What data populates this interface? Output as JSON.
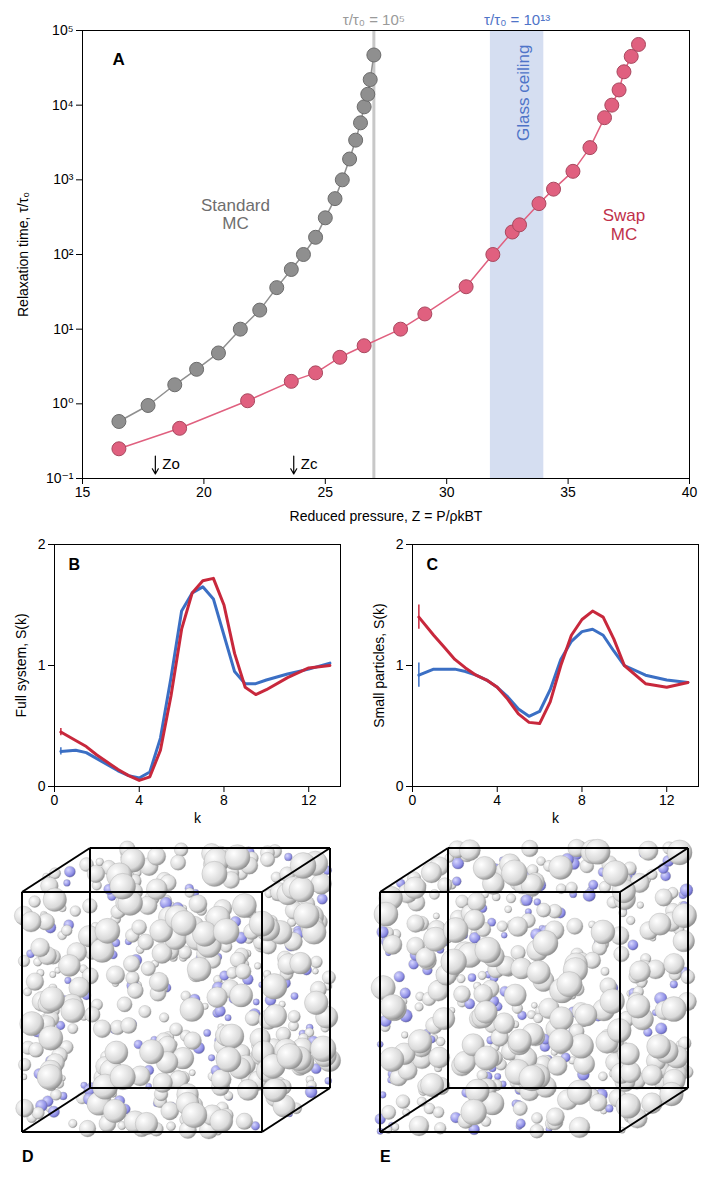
{
  "chart_data": [
    {
      "type": "line",
      "panel": "A",
      "xlabel": "Reduced pressure, Z = P/ρkBT",
      "ylabel": "Relaxation time, τ/τ₀",
      "log": "y",
      "xlim": [
        15,
        40
      ],
      "ylim": [
        0.1,
        100000
      ],
      "xticks": [
        15,
        20,
        25,
        30,
        35,
        40
      ],
      "yticks": [
        {
          "value": 0.1,
          "label": "10⁻¹"
        },
        {
          "value": 1,
          "label": "10⁰"
        },
        {
          "value": 10,
          "label": "10¹"
        },
        {
          "value": 100,
          "label": "10²"
        },
        {
          "value": 1000,
          "label": "10³"
        },
        {
          "value": 10000,
          "label": "10⁴"
        },
        {
          "value": 100000,
          "label": "10⁵"
        }
      ],
      "series": [
        {
          "color": "#8f8f8f",
          "marker": "circle",
          "line_style": "solid",
          "x": [
            16.5,
            17.7,
            18.8,
            19.7,
            20.6,
            21.5,
            22.3,
            23.0,
            23.6,
            24.1,
            24.6,
            25.0,
            25.4,
            25.7,
            26.0,
            26.25,
            26.45,
            26.6,
            26.75,
            26.85,
            27.0
          ],
          "values": [
            0.58,
            0.95,
            1.8,
            2.9,
            4.8,
            10,
            18,
            36,
            63,
            100,
            170,
            310,
            560,
            1000,
            1900,
            3400,
            5800,
            9500,
            14000,
            22000,
            47000
          ]
        },
        {
          "color": "#e0607f",
          "marker": "circle",
          "line_style": "solid",
          "x": [
            16.5,
            19.0,
            21.8,
            23.6,
            24.6,
            25.6,
            26.6,
            28.1,
            29.1,
            30.8,
            31.9,
            32.7,
            33.0,
            33.8,
            34.4,
            35.2,
            35.9,
            36.5,
            36.8,
            37.1,
            37.3,
            37.6,
            37.9
          ],
          "values": [
            0.25,
            0.47,
            1.1,
            2.0,
            2.6,
            4.2,
            6.0,
            10,
            16,
            37,
            100,
            200,
            250,
            480,
            750,
            1300,
            2700,
            6800,
            10000,
            16000,
            28000,
            45000,
            65000
          ]
        }
      ],
      "bands": [
        {
          "x1": 31.8,
          "x2": 34.0,
          "color": "#d5def1",
          "label": "Glass ceiling",
          "label_color": "#4f74c8"
        }
      ],
      "vlines": [
        {
          "x": 27,
          "color": "#c8c8c8"
        }
      ],
      "top_labels": [
        {
          "text": "τ/τ₀ = 10⁵",
          "x": 27,
          "color": "#9a9a9a"
        },
        {
          "text": "τ/τ₀ = 10¹³",
          "x": 32.9,
          "color": "#4f74c8"
        }
      ],
      "annotations": [
        {
          "text": "Standard MC",
          "x": 21.3,
          "y": 350,
          "color": "#6e6e6e"
        },
        {
          "text": "Swap MC",
          "x": 37.3,
          "y": 250,
          "color": "#c0304a"
        }
      ],
      "arrows": [
        {
          "x": 18,
          "y1": 0.2,
          "y2": 0.115,
          "label": "Zo"
        },
        {
          "x": 23.7,
          "y1": 0.2,
          "y2": 0.115,
          "label": "Zc"
        }
      ]
    },
    {
      "type": "line",
      "panel": "B",
      "xlabel": "k",
      "ylabel": "Full system, S(k)",
      "xlim": [
        0,
        13.5
      ],
      "ylim": [
        0,
        2
      ],
      "xticks": [
        0,
        4,
        8,
        12
      ],
      "yticks": [
        0,
        1,
        2
      ],
      "x": [
        0.3,
        1,
        1.5,
        2,
        2.5,
        3,
        3.5,
        4,
        4.5,
        5,
        5.5,
        6,
        6.5,
        7,
        7.5,
        8,
        8.5,
        9,
        9.5,
        10,
        11,
        12,
        13
      ],
      "series": [
        {
          "color": "#3b6fc4",
          "line_style": "solid",
          "values": [
            0.29,
            0.3,
            0.28,
            0.23,
            0.18,
            0.13,
            0.09,
            0.07,
            0.12,
            0.4,
            0.9,
            1.45,
            1.6,
            1.65,
            1.55,
            1.25,
            0.95,
            0.85,
            0.85,
            0.88,
            0.93,
            0.97,
            1.02
          ],
          "errors": [
            0.03,
            null,
            null,
            null,
            null,
            null,
            null,
            null,
            null,
            null,
            null,
            null,
            null,
            null,
            null,
            null,
            null,
            null,
            null,
            null,
            null,
            null,
            null
          ]
        },
        {
          "color": "#c8283c",
          "line_style": "solid",
          "values": [
            0.45,
            0.38,
            0.33,
            0.26,
            0.2,
            0.14,
            0.09,
            0.05,
            0.08,
            0.3,
            0.75,
            1.3,
            1.6,
            1.7,
            1.72,
            1.5,
            1.1,
            0.82,
            0.76,
            0.8,
            0.9,
            0.98,
            1.0
          ],
          "errors": [
            0.03,
            null,
            null,
            null,
            null,
            null,
            null,
            null,
            null,
            null,
            null,
            null,
            null,
            null,
            null,
            null,
            null,
            null,
            null,
            null,
            null,
            null,
            null
          ]
        }
      ]
    },
    {
      "type": "line",
      "panel": "C",
      "xlabel": "k",
      "ylabel": "Small particles, S(k)",
      "xlim": [
        0,
        13.5
      ],
      "ylim": [
        0,
        2
      ],
      "xticks": [
        0,
        4,
        8,
        12
      ],
      "yticks": [
        0,
        1,
        2
      ],
      "x": [
        0.3,
        1,
        1.5,
        2,
        2.5,
        3,
        3.5,
        4,
        4.5,
        5,
        5.5,
        6,
        6.5,
        7,
        7.5,
        8,
        8.5,
        9,
        9.5,
        10,
        11,
        12,
        13
      ],
      "series": [
        {
          "color": "#3b6fc4",
          "line_style": "solid",
          "values": [
            0.92,
            0.97,
            0.97,
            0.97,
            0.95,
            0.92,
            0.88,
            0.82,
            0.74,
            0.64,
            0.58,
            0.62,
            0.8,
            1.05,
            1.2,
            1.28,
            1.3,
            1.25,
            1.12,
            1.0,
            0.92,
            0.88,
            0.86
          ],
          "errors": [
            0.1,
            null,
            null,
            null,
            null,
            null,
            null,
            null,
            null,
            null,
            null,
            null,
            null,
            null,
            null,
            null,
            null,
            null,
            null,
            null,
            null,
            null,
            null
          ]
        },
        {
          "color": "#c8283c",
          "line_style": "solid",
          "values": [
            1.4,
            1.25,
            1.15,
            1.05,
            0.98,
            0.92,
            0.88,
            0.82,
            0.72,
            0.6,
            0.53,
            0.52,
            0.7,
            1.0,
            1.25,
            1.38,
            1.45,
            1.4,
            1.22,
            1.0,
            0.85,
            0.82,
            0.86
          ],
          "errors": [
            0.1,
            null,
            null,
            null,
            null,
            null,
            null,
            null,
            null,
            null,
            null,
            null,
            null,
            null,
            null,
            null,
            null,
            null,
            null,
            null,
            null,
            null,
            null
          ]
        }
      ]
    }
  ],
  "images": [
    {
      "panel": "D"
    },
    {
      "panel": "E"
    }
  ]
}
